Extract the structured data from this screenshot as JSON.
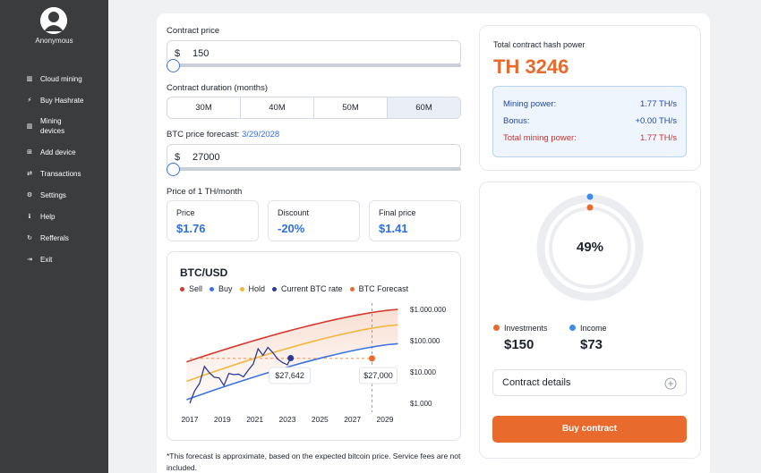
{
  "sidebar": {
    "username": "Anonymous",
    "items": [
      {
        "label": "Cloud mining",
        "icon": "bar-chart-icon",
        "glyph": "▥"
      },
      {
        "label": "Buy Hashrate",
        "icon": "bolt-icon",
        "glyph": "⚡"
      },
      {
        "label": "Mining devices",
        "icon": "bar-chart-icon",
        "glyph": "▥"
      },
      {
        "label": "Add device",
        "icon": "plus-square-icon",
        "glyph": "⊞"
      },
      {
        "label": "Transactions",
        "icon": "swap-icon",
        "glyph": "⇄"
      },
      {
        "label": "Settings",
        "icon": "gear-icon",
        "glyph": "⚙"
      },
      {
        "label": "Help",
        "icon": "info-icon",
        "glyph": "ℹ"
      },
      {
        "label": "Refferals",
        "icon": "refresh-icon",
        "glyph": "↻"
      },
      {
        "label": "Exit",
        "icon": "exit-icon",
        "glyph": "⇥"
      }
    ]
  },
  "form": {
    "contract_price_label": "Contract price",
    "currency": "$",
    "contract_price_value": "150",
    "duration_label": "Contract duration (months)",
    "durations": [
      "30M",
      "40M",
      "50M",
      "60M"
    ],
    "active_duration": "60M",
    "forecast_label": "BTC price forecast:",
    "forecast_date": "3/29/2028",
    "forecast_value": "27000",
    "price_per_label": "Price of 1 TH/month",
    "price_label": "Price",
    "price_value": "$1.76",
    "discount_label": "Discount",
    "discount_value": "-20%",
    "final_label": "Final price",
    "final_value": "$1.41"
  },
  "chart": {
    "title": "BTC/USD",
    "legend": [
      {
        "name": "Sell",
        "color": "#d63a2f"
      },
      {
        "name": "Buy",
        "color": "#3d73e0"
      },
      {
        "name": "Hold",
        "color": "#f2b63d"
      },
      {
        "name": "Current BTC rate",
        "color": "#2a3a9c"
      },
      {
        "name": "BTC Forecast",
        "color": "#e86a2c"
      }
    ],
    "current_tooltip": "$27,642",
    "forecast_tooltip": "$27,000"
  },
  "chart_data": {
    "type": "line",
    "title": "BTC/USD",
    "x_ticks": [
      "2017",
      "2019",
      "2021",
      "2023",
      "2025",
      "2027",
      "2029"
    ],
    "y_ticks": [
      "$1.000.000",
      "$100.000",
      "$10.000",
      "$1.000"
    ],
    "yscale": "log",
    "series": [
      {
        "name": "Sell",
        "x": [
          2016.8,
          2029.8
        ],
        "y": [
          21000,
          1000000
        ]
      },
      {
        "name": "Hold",
        "x": [
          2016.8,
          2029.8
        ],
        "y": [
          5000,
          320000
        ]
      },
      {
        "name": "Buy",
        "x": [
          2016.8,
          2029.8
        ],
        "y": [
          1300,
          80000
        ]
      },
      {
        "name": "Current BTC rate",
        "x": [
          2017.0,
          2017.3,
          2017.6,
          2017.9,
          2018.2,
          2018.5,
          2018.8,
          2019.1,
          2019.4,
          2019.7,
          2020.0,
          2020.3,
          2020.6,
          2020.9,
          2021.2,
          2021.5,
          2021.8,
          2022.1,
          2022.4,
          2022.7,
          2023.0,
          2023.2
        ],
        "y": [
          1000,
          2500,
          4300,
          15000,
          9500,
          6800,
          6500,
          3700,
          9000,
          8200,
          8500,
          7000,
          11500,
          18000,
          55000,
          34000,
          61000,
          42000,
          26000,
          20000,
          17000,
          27642
        ]
      },
      {
        "name": "BTC Forecast",
        "x": [
          2028.2
        ],
        "y": [
          27000
        ]
      }
    ],
    "annotations": [
      "$27,642",
      "$27,000"
    ]
  },
  "footnote": "*This forecast is approximate, based on the expected bitcoin price. Service fees are not included.",
  "summary": {
    "hash_label": "Total contract hash power",
    "hash_value": "TH 3246",
    "mining_label": "Mining power:",
    "mining_value": "1.77 TH/s",
    "bonus_label": "Bonus:",
    "bonus_value": "+0.00 TH/s",
    "total_label": "Total mining power:",
    "total_value": "1.77 TH/s"
  },
  "donut": {
    "percent_label": "49%",
    "percent": 49,
    "investments_label": "Investments",
    "investments_value": "$150",
    "income_label": "Income",
    "income_value": "$73"
  },
  "actions": {
    "details_label": "Contract details",
    "buy_label": "Buy contract"
  },
  "colors": {
    "accent": "#e86a2c",
    "blue": "#2f6fe0",
    "red": "#c9302c"
  }
}
